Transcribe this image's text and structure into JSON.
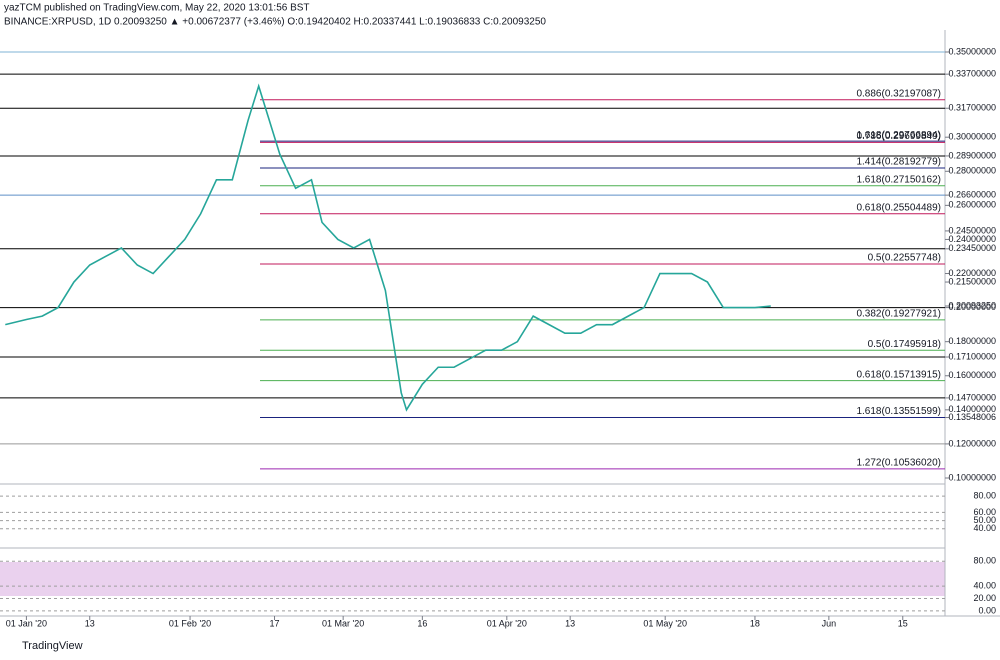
{
  "chart_data": {
    "type": "line",
    "header": "yazTCM published on TradingView.com, May 22, 2020 13:01:56 BST",
    "symbol_line": "BINANCE:XRPUSD, 1D  0.20093250 ▲ +0.00672377 (+3.46%)  O:0.19420402  H:0.20337441  L:0.19036833  C:0.20093250",
    "footer": "TradingView",
    "series": [
      {
        "name": "XRPUSD",
        "color": "#26a69a",
        "x": [
          "2019-12-28",
          "2020-01-01",
          "2020-01-04",
          "2020-01-07",
          "2020-01-10",
          "2020-01-13",
          "2020-01-16",
          "2020-01-19",
          "2020-01-22",
          "2020-01-25",
          "2020-01-28",
          "2020-01-31",
          "2020-02-03",
          "2020-02-06",
          "2020-02-09",
          "2020-02-12",
          "2020-02-14",
          "2020-02-16",
          "2020-02-18",
          "2020-02-21",
          "2020-02-24",
          "2020-02-26",
          "2020-02-29",
          "2020-03-03",
          "2020-03-06",
          "2020-03-09",
          "2020-03-12",
          "2020-03-13",
          "2020-03-16",
          "2020-03-19",
          "2020-03-22",
          "2020-03-25",
          "2020-03-28",
          "2020-03-31",
          "2020-04-03",
          "2020-04-06",
          "2020-04-09",
          "2020-04-12",
          "2020-04-15",
          "2020-04-18",
          "2020-04-21",
          "2020-04-24",
          "2020-04-27",
          "2020-04-30",
          "2020-05-03",
          "2020-05-06",
          "2020-05-09",
          "2020-05-12",
          "2020-05-15",
          "2020-05-18",
          "2020-05-21"
        ],
        "values": [
          0.19,
          0.193,
          0.195,
          0.2,
          0.215,
          0.225,
          0.23,
          0.235,
          0.225,
          0.22,
          0.23,
          0.24,
          0.255,
          0.275,
          0.275,
          0.31,
          0.33,
          0.31,
          0.29,
          0.27,
          0.275,
          0.25,
          0.24,
          0.235,
          0.24,
          0.21,
          0.15,
          0.14,
          0.155,
          0.165,
          0.165,
          0.17,
          0.175,
          0.175,
          0.18,
          0.195,
          0.19,
          0.185,
          0.185,
          0.19,
          0.19,
          0.195,
          0.2,
          0.22,
          0.22,
          0.22,
          0.215,
          0.2,
          0.2,
          0.2,
          0.2009325
        ]
      }
    ],
    "levels": [
      {
        "value": 0.35,
        "color": "#7fb3d5"
      },
      {
        "value": 0.337,
        "color": "#000000"
      },
      {
        "value": 0.317,
        "color": "#000000"
      },
      {
        "value": 0.289,
        "color": "#000000"
      },
      {
        "value": 0.266,
        "color": "#5d8fc7"
      },
      {
        "value": 0.2345,
        "color": "#000000"
      },
      {
        "value": 0.2,
        "color": "#000000"
      },
      {
        "value": 0.171,
        "color": "#000000"
      },
      {
        "value": 0.147,
        "color": "#000000"
      },
      {
        "value": 0.12,
        "color": "#999999"
      },
      {
        "value": 0.32197087,
        "color": "#c2185b",
        "label": "0.886(0.32197087)"
      },
      {
        "value": 0.29766894,
        "color": "#1a237e",
        "label": "1.618(0.29766894)"
      },
      {
        "value": 0.29699849,
        "color": "#c2185b",
        "label": "0.786(0.29699849)"
      },
      {
        "value": 0.28192779,
        "color": "#1a237e",
        "label": "1.414(0.28192779)"
      },
      {
        "value": 0.27150162,
        "color": "#4caf50",
        "label": "1.618(0.27150162)"
      },
      {
        "value": 0.25504489,
        "color": "#c2185b",
        "label": "0.618(0.25504489)"
      },
      {
        "value": 0.22557748,
        "color": "#c2185b",
        "label": "0.5(0.22557748)"
      },
      {
        "value": 0.19277921,
        "color": "#4caf50",
        "label": "0.382(0.19277921)"
      },
      {
        "value": 0.17495918,
        "color": "#4caf50",
        "label": "0.5(0.17495918)"
      },
      {
        "value": 0.15713915,
        "color": "#4caf50",
        "label": "0.618(0.15713915)"
      },
      {
        "value": 0.13551599,
        "color": "#1a237e",
        "label": "1.618(0.13551599)"
      },
      {
        "value": 0.1053602,
        "color": "#9c27b0",
        "label": "1.272(0.10536020)"
      }
    ],
    "ylim": [
      0.1,
      0.35
    ],
    "yticks": [
      {
        "value": 0.35,
        "label": "0.35000000"
      },
      {
        "value": 0.337,
        "label": "0.33700000"
      },
      {
        "value": 0.317,
        "label": "0.31700000"
      },
      {
        "value": 0.3,
        "label": "0.30000000"
      },
      {
        "value": 0.289,
        "label": "0.28900000"
      },
      {
        "value": 0.28,
        "label": "0.28000000"
      },
      {
        "value": 0.266,
        "label": "0.26600000"
      },
      {
        "value": 0.26,
        "label": "0.26000000"
      },
      {
        "value": 0.245,
        "label": "0.24500000"
      },
      {
        "value": 0.24,
        "label": "0.24000000"
      },
      {
        "value": 0.2345,
        "label": "0.23450000"
      },
      {
        "value": 0.22,
        "label": "0.22000000"
      },
      {
        "value": 0.215,
        "label": "0.21500000"
      },
      {
        "value": 0.2009325,
        "label": "0.20093250"
      },
      {
        "value": 0.2,
        "label": "0.20000000"
      },
      {
        "value": 0.18,
        "label": "0.18000000"
      },
      {
        "value": 0.171,
        "label": "0.17100000"
      },
      {
        "value": 0.16,
        "label": "0.16000000"
      },
      {
        "value": 0.147,
        "label": "0.14700000"
      },
      {
        "value": 0.14,
        "label": "0.14000000"
      },
      {
        "value": 0.13548006,
        "label": "0.13548006"
      },
      {
        "value": 0.12,
        "label": "0.12000000"
      },
      {
        "value": 0.1,
        "label": "0.10000000"
      }
    ],
    "xlim": [
      "2019-12-27",
      "2020-06-23"
    ],
    "xticks": [
      {
        "value": "2020-01-01",
        "label": "01 Jan '20"
      },
      {
        "value": "2020-01-13",
        "label": "13"
      },
      {
        "value": "2020-02-01",
        "label": "01 Feb '20"
      },
      {
        "value": "2020-02-17",
        "label": "17"
      },
      {
        "value": "2020-03-01",
        "label": "01 Mar '20"
      },
      {
        "value": "2020-03-16",
        "label": "16"
      },
      {
        "value": "2020-04-01",
        "label": "01 Apr '20"
      },
      {
        "value": "2020-04-13",
        "label": "13"
      },
      {
        "value": "2020-05-01",
        "label": "01 May '20"
      },
      {
        "value": "2020-05-18",
        "label": "18"
      },
      {
        "value": "2020-06-01",
        "label": "Jun"
      },
      {
        "value": "2020-06-15",
        "label": "15"
      }
    ],
    "rsi": {
      "ylim": [
        20,
        90
      ],
      "yticks": [
        {
          "value": 80,
          "label": "80.00"
        },
        {
          "value": 60,
          "label": "60.00"
        },
        {
          "value": 50,
          "label": "50.00"
        },
        {
          "value": 40,
          "label": "40.00"
        }
      ]
    },
    "stoch": {
      "ylim": [
        -5,
        95
      ],
      "yticks": [
        {
          "value": 80,
          "label": "80.00"
        },
        {
          "value": 40,
          "label": "40.00"
        },
        {
          "value": 20,
          "label": "20.00"
        },
        {
          "value": 0,
          "label": "0.00"
        }
      ]
    }
  }
}
